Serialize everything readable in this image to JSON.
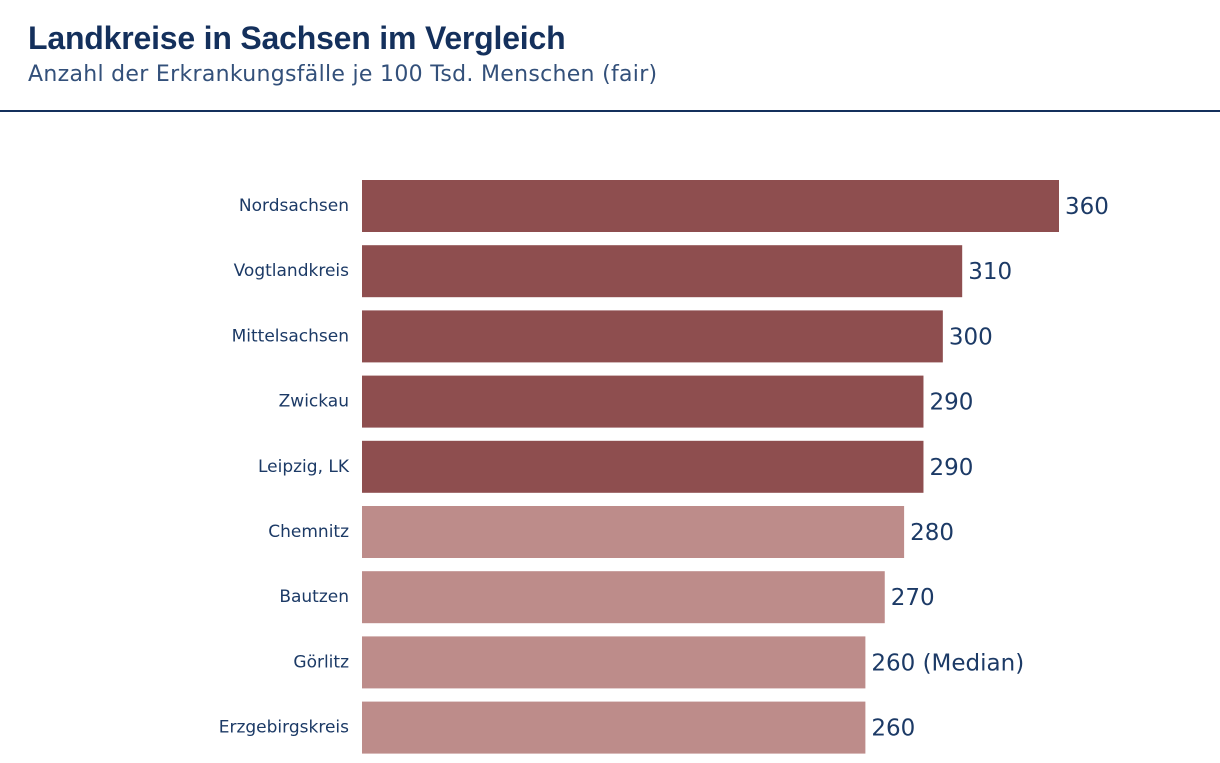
{
  "header": {
    "title": "Landkreise in Sachsen im Vergleich",
    "subtitle": "Anzahl der Erkrankungsfälle je 100 Tsd. Menschen (fair)"
  },
  "colors": {
    "highlight": "#8e4e4f",
    "normal": "#bd8c8a",
    "text": "#1c3a66"
  },
  "chart_data": {
    "type": "bar",
    "orientation": "horizontal",
    "title": "Landkreise in Sachsen im Vergleich",
    "subtitle": "Anzahl der Erkrankungsfälle je 100 Tsd. Menschen (fair)",
    "categories": [
      "Nordsachsen",
      "Vogtlandkreis",
      "Mittelsachsen",
      "Zwickau",
      "Leipzig, LK",
      "Chemnitz",
      "Bautzen",
      "Görlitz",
      "Erzgebirgskreis"
    ],
    "values": [
      360,
      310,
      300,
      290,
      290,
      280,
      270,
      260,
      260
    ],
    "value_labels": [
      "360",
      "310",
      "300",
      "290",
      "290",
      "280",
      "270",
      "260 (Median)",
      "260"
    ],
    "highlighted": [
      true,
      true,
      true,
      true,
      true,
      false,
      false,
      false,
      false
    ],
    "xlim": [
      0,
      360
    ],
    "grid": false,
    "legend": false
  }
}
